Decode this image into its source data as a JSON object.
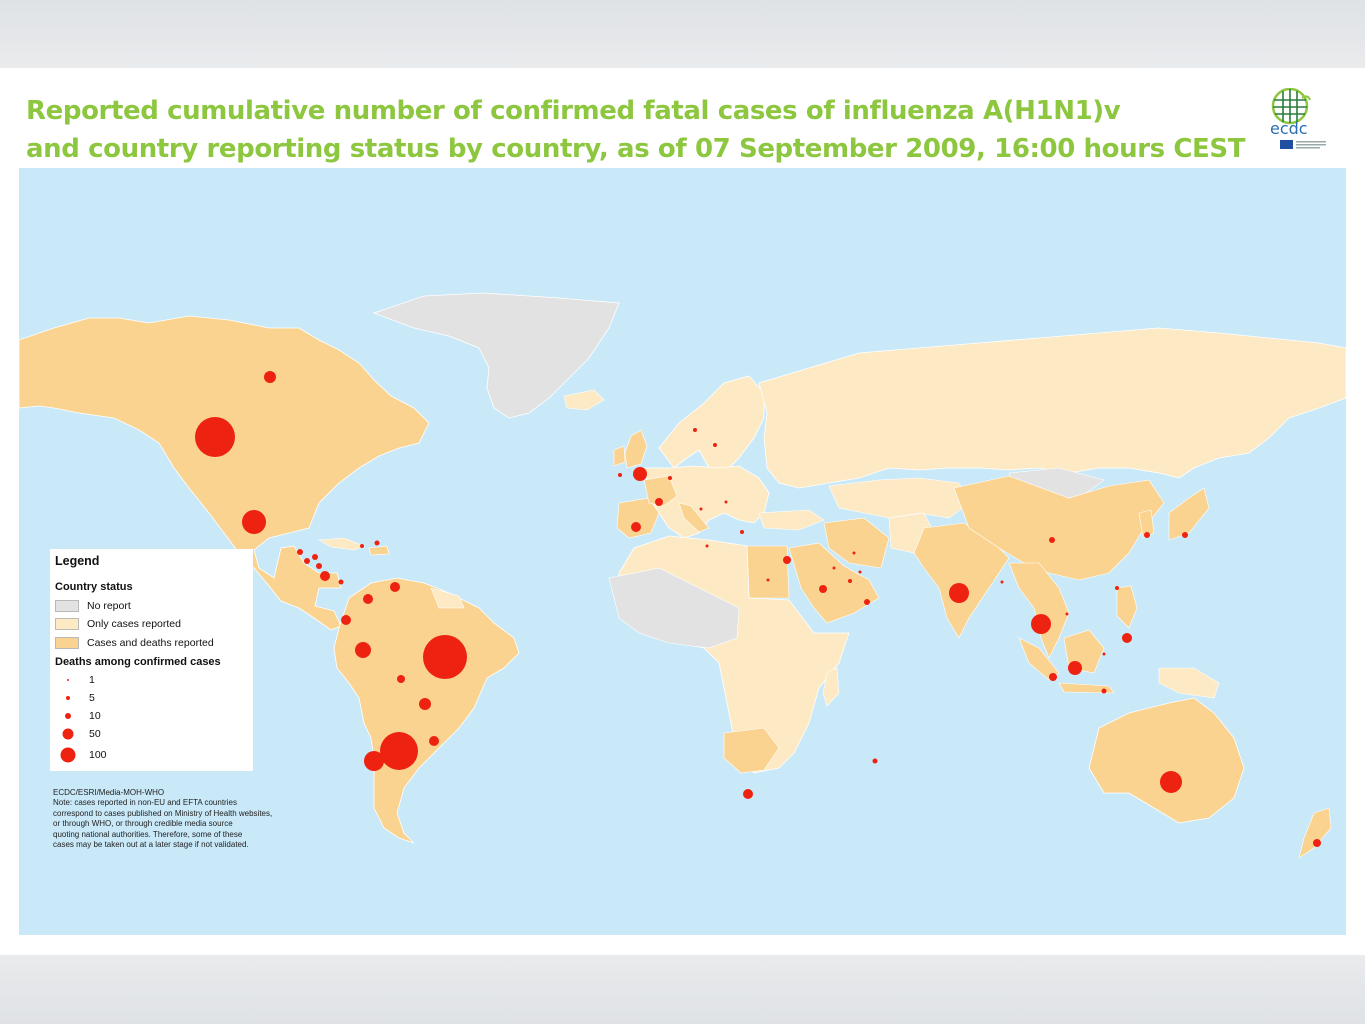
{
  "title": {
    "line1": "Reported cumulative number of confirmed fatal cases of influenza A(H1N1)v",
    "line2": "and country reporting status by country, as of 07 September 2009, 16:00 hours CEST"
  },
  "logo": {
    "text": "ecdc",
    "icon": "ecdc-globe-logo"
  },
  "colors": {
    "title": "#8dc63f",
    "ocean": "#c9e9f9",
    "no_report": "#e2e2e2",
    "only_cases": "#fde9c4",
    "cases_deaths": "#fbd390",
    "death_marker": "#ee2211"
  },
  "legend": {
    "title": "Legend",
    "status_heading": "Country status",
    "status": [
      {
        "label": "No report",
        "color": "#e2e2e2"
      },
      {
        "label": "Only cases reported",
        "color": "#fde9c4"
      },
      {
        "label": "Cases and deaths reported",
        "color": "#fbd390"
      }
    ],
    "deaths_heading": "Deaths among confirmed cases",
    "deaths": [
      {
        "label": "1",
        "value": 1
      },
      {
        "label": "5",
        "value": 5
      },
      {
        "label": "10",
        "value": 10
      },
      {
        "label": "50",
        "value": 50
      },
      {
        "label": "100",
        "value": 100
      }
    ]
  },
  "note": [
    "ECDC/ESRI/Media-MOH-WHO",
    "Note: cases reported in non-EU and EFTA countries",
    "correspond to cases published on Ministry of Health websites,",
    "or through WHO, or through credible media source",
    "quoting national authorities. Therefore, some of these",
    "cases may be taken out at a later stage if not validated."
  ]
}
